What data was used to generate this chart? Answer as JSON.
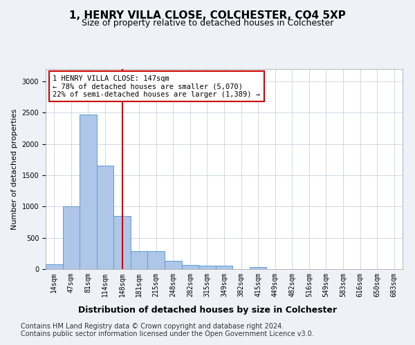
{
  "title1": "1, HENRY VILLA CLOSE, COLCHESTER, CO4 5XP",
  "title2": "Size of property relative to detached houses in Colchester",
  "xlabel": "Distribution of detached houses by size in Colchester",
  "ylabel": "Number of detached properties",
  "categories": [
    "14sqm",
    "47sqm",
    "81sqm",
    "114sqm",
    "148sqm",
    "181sqm",
    "215sqm",
    "248sqm",
    "282sqm",
    "315sqm",
    "349sqm",
    "382sqm",
    "415sqm",
    "449sqm",
    "482sqm",
    "516sqm",
    "549sqm",
    "583sqm",
    "616sqm",
    "650sqm",
    "683sqm"
  ],
  "values": [
    75,
    1000,
    2470,
    1650,
    855,
    285,
    285,
    130,
    70,
    55,
    55,
    0,
    30,
    0,
    0,
    0,
    0,
    0,
    0,
    0,
    0
  ],
  "bar_color": "#aec6e8",
  "bar_edge_color": "#5a9fd4",
  "annotation_text_line1": "1 HENRY VILLA CLOSE: 147sqm",
  "annotation_text_line2": "← 78% of detached houses are smaller (5,070)",
  "annotation_text_line3": "22% of semi-detached houses are larger (1,389) →",
  "annotation_box_color": "#ffffff",
  "annotation_box_edge_color": "#cc0000",
  "vline_color": "#cc0000",
  "vline_x_idx": 4,
  "ylim": [
    0,
    3200
  ],
  "yticks": [
    0,
    500,
    1000,
    1500,
    2000,
    2500,
    3000
  ],
  "footer_line1": "Contains HM Land Registry data © Crown copyright and database right 2024.",
  "footer_line2": "Contains public sector information licensed under the Open Government Licence v3.0.",
  "bg_color": "#eef2f7",
  "plot_bg_color": "#ffffff",
  "grid_color": "#d0d8e4",
  "title_fontsize": 11,
  "subtitle_fontsize": 9,
  "ylabel_fontsize": 8,
  "xlabel_fontsize": 9,
  "tick_fontsize": 7,
  "footer_fontsize": 7,
  "annot_fontsize": 7.5
}
